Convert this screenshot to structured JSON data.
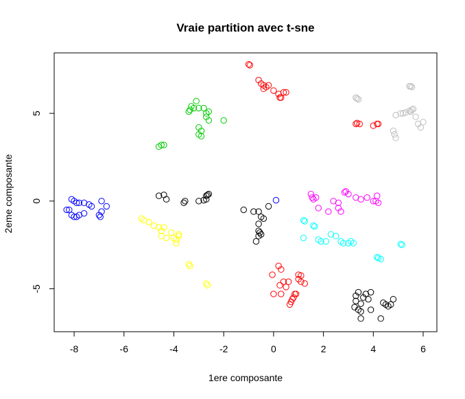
{
  "chart_data": {
    "type": "scatter",
    "title": "Vraie partition avec t-sne",
    "xlabel": "1ere composante",
    "ylabel": "2eme composante",
    "xlim": [
      -8.8,
      6.55
    ],
    "ylim": [
      -7.45,
      8.45
    ],
    "xticks": [
      -8,
      -6,
      -4,
      -2,
      0,
      2,
      4,
      6
    ],
    "yticks": [
      -5,
      0,
      5
    ],
    "grid": false,
    "legend": "none",
    "series": [
      {
        "color": "#0000ff",
        "points": [
          [
            -8.1,
            0.1
          ],
          [
            -8.0,
            0.0
          ],
          [
            -7.9,
            -0.1
          ],
          [
            -7.8,
            -0.1
          ],
          [
            -7.6,
            -0.1
          ],
          [
            -7.4,
            -0.2
          ],
          [
            -7.3,
            -0.3
          ],
          [
            -8.2,
            -0.5
          ],
          [
            -8.1,
            -0.8
          ],
          [
            -8.0,
            -0.9
          ],
          [
            -7.9,
            -0.9
          ],
          [
            -7.8,
            -0.8
          ],
          [
            -7.6,
            -0.7
          ],
          [
            -7.0,
            -0.8
          ],
          [
            -6.95,
            -0.9
          ],
          [
            -6.9,
            -0.6
          ],
          [
            -6.9,
            0.0
          ],
          [
            -6.7,
            -0.3
          ],
          [
            -8.3,
            -0.5
          ],
          [
            0.1,
            0.05
          ]
        ]
      },
      {
        "color": "#ffff00",
        "points": [
          [
            -5.3,
            -1.0
          ],
          [
            -5.2,
            -1.1
          ],
          [
            -5.0,
            -1.2
          ],
          [
            -4.8,
            -1.4
          ],
          [
            -4.6,
            -1.5
          ],
          [
            -4.5,
            -1.7
          ],
          [
            -4.4,
            -1.5
          ],
          [
            -4.5,
            -2.0
          ],
          [
            -4.3,
            -2.1
          ],
          [
            -4.1,
            -1.8
          ],
          [
            -4.0,
            -2.1
          ],
          [
            -3.9,
            -2.2
          ],
          [
            -3.9,
            -2.4
          ],
          [
            -3.8,
            -2.0
          ],
          [
            -3.8,
            -1.9
          ],
          [
            -3.4,
            -3.6
          ],
          [
            -3.35,
            -3.7
          ],
          [
            -2.7,
            -4.7
          ],
          [
            -2.65,
            -4.8
          ]
        ]
      },
      {
        "color": "#00cc00",
        "points": [
          [
            -3.1,
            5.7
          ],
          [
            -3.3,
            5.4
          ],
          [
            -3.2,
            5.3
          ],
          [
            -3.0,
            5.3
          ],
          [
            -2.8,
            5.3
          ],
          [
            -3.35,
            5.2
          ],
          [
            -3.4,
            5.1
          ],
          [
            -2.7,
            5.0
          ],
          [
            -2.6,
            5.1
          ],
          [
            -2.7,
            4.8
          ],
          [
            -2.6,
            4.6
          ],
          [
            -2.0,
            4.6
          ],
          [
            -3.0,
            4.2
          ],
          [
            -2.9,
            4.0
          ],
          [
            -3.0,
            3.8
          ],
          [
            -2.9,
            3.7
          ],
          [
            -4.5,
            3.2
          ],
          [
            -4.6,
            3.1
          ],
          [
            -4.4,
            3.2
          ]
        ]
      },
      {
        "color": "#ff0000",
        "points": [
          [
            -1.0,
            7.8
          ],
          [
            -0.95,
            7.75
          ],
          [
            -0.6,
            6.9
          ],
          [
            -0.5,
            6.7
          ],
          [
            -0.4,
            6.6
          ],
          [
            -0.3,
            6.5
          ],
          [
            -0.4,
            6.4
          ],
          [
            -0.2,
            6.6
          ],
          [
            0.0,
            6.3
          ],
          [
            0.2,
            6.1
          ],
          [
            0.4,
            6.2
          ],
          [
            0.5,
            6.2
          ],
          [
            0.25,
            5.9
          ],
          [
            0.3,
            5.9
          ],
          [
            3.3,
            4.4
          ],
          [
            3.35,
            4.45
          ],
          [
            3.45,
            4.4
          ],
          [
            4.0,
            4.3
          ],
          [
            4.15,
            4.4
          ],
          [
            4.2,
            4.4
          ],
          [
            -0.05,
            -4.2
          ],
          [
            0.2,
            -3.7
          ],
          [
            0.3,
            -3.9
          ],
          [
            0.0,
            -5.3
          ],
          [
            0.3,
            -5.3
          ],
          [
            0.25,
            -4.8
          ],
          [
            0.4,
            -4.6
          ],
          [
            0.6,
            -4.6
          ],
          [
            0.5,
            -4.9
          ],
          [
            1.0,
            -4.2
          ],
          [
            1.1,
            -4.25
          ],
          [
            1.0,
            -4.45
          ],
          [
            1.1,
            -4.6
          ],
          [
            1.25,
            -4.7
          ],
          [
            0.85,
            -5.3
          ],
          [
            0.9,
            -5.3
          ],
          [
            0.8,
            -5.5
          ],
          [
            0.75,
            -5.6
          ],
          [
            0.7,
            -5.75
          ],
          [
            0.65,
            -5.9
          ]
        ]
      },
      {
        "color": "#000000",
        "points": [
          [
            -4.6,
            0.3
          ],
          [
            -4.4,
            0.35
          ],
          [
            -4.3,
            0.1
          ],
          [
            -3.6,
            -0.1
          ],
          [
            -3.55,
            0.0
          ],
          [
            -3.0,
            0.0
          ],
          [
            -2.8,
            0.05
          ],
          [
            -2.7,
            0.1
          ],
          [
            -2.7,
            0.3
          ],
          [
            -2.65,
            0.35
          ],
          [
            -2.6,
            0.4
          ],
          [
            -1.2,
            -0.5
          ],
          [
            -0.8,
            -0.6
          ],
          [
            -0.6,
            -0.6
          ],
          [
            -0.5,
            -0.9
          ],
          [
            -0.6,
            -1.3
          ],
          [
            -0.6,
            -1.7
          ],
          [
            -0.55,
            -1.8
          ],
          [
            -0.5,
            -1.9
          ],
          [
            -0.6,
            -2.0
          ],
          [
            -0.7,
            -2.3
          ],
          [
            -0.2,
            -0.3
          ],
          [
            -0.4,
            -1.0
          ],
          [
            3.3,
            -5.4
          ],
          [
            3.3,
            -5.7
          ],
          [
            3.4,
            -5.2
          ],
          [
            3.5,
            -5.85
          ],
          [
            3.6,
            -5.5
          ],
          [
            3.7,
            -5.3
          ],
          [
            3.8,
            -5.6
          ],
          [
            3.9,
            -5.2
          ],
          [
            3.4,
            -6.2
          ],
          [
            3.5,
            -6.3
          ],
          [
            3.5,
            -6.7
          ],
          [
            3.9,
            -6.2
          ],
          [
            4.3,
            -6.7
          ],
          [
            4.5,
            -5.9
          ],
          [
            4.6,
            -6.0
          ],
          [
            4.7,
            -5.9
          ],
          [
            4.8,
            -5.6
          ],
          [
            3.25,
            -6.05
          ],
          [
            4.4,
            -5.8
          ]
        ]
      },
      {
        "color": "#ff00ff",
        "points": [
          [
            1.5,
            0.4
          ],
          [
            1.55,
            0.2
          ],
          [
            1.6,
            0.1
          ],
          [
            1.7,
            0.2
          ],
          [
            1.8,
            -0.4
          ],
          [
            2.4,
            0.0
          ],
          [
            2.6,
            -0.1
          ],
          [
            2.6,
            -0.4
          ],
          [
            2.7,
            -0.6
          ],
          [
            2.85,
            0.5
          ],
          [
            2.9,
            0.55
          ],
          [
            3.0,
            0.4
          ],
          [
            3.3,
            0.2
          ],
          [
            3.5,
            0.1
          ],
          [
            3.75,
            0.2
          ],
          [
            4.0,
            0.0
          ],
          [
            4.1,
            0.0
          ],
          [
            4.15,
            0.3
          ],
          [
            4.2,
            -0.1
          ],
          [
            2.2,
            -0.6
          ]
        ]
      },
      {
        "color": "#00ffff",
        "points": [
          [
            1.2,
            -1.1
          ],
          [
            1.25,
            -1.15
          ],
          [
            1.6,
            -1.4
          ],
          [
            1.65,
            -1.45
          ],
          [
            1.2,
            -2.1
          ],
          [
            1.8,
            -2.2
          ],
          [
            1.9,
            -2.3
          ],
          [
            2.1,
            -2.3
          ],
          [
            2.3,
            -1.9
          ],
          [
            2.5,
            -2.0
          ],
          [
            2.7,
            -2.3
          ],
          [
            2.8,
            -2.4
          ],
          [
            3.0,
            -2.4
          ],
          [
            3.1,
            -2.3
          ],
          [
            3.2,
            -2.4
          ],
          [
            4.15,
            -3.2
          ],
          [
            4.2,
            -3.25
          ],
          [
            4.3,
            -3.3
          ],
          [
            5.1,
            -2.45
          ],
          [
            5.15,
            -2.5
          ]
        ]
      },
      {
        "color": "#bebebe",
        "points": [
          [
            3.3,
            5.9
          ],
          [
            3.35,
            5.85
          ],
          [
            3.4,
            5.8
          ],
          [
            5.45,
            6.55
          ],
          [
            5.5,
            6.55
          ],
          [
            5.55,
            6.5
          ],
          [
            4.9,
            4.9
          ],
          [
            5.1,
            5.0
          ],
          [
            5.2,
            5.0
          ],
          [
            5.3,
            5.05
          ],
          [
            5.5,
            5.1
          ],
          [
            5.55,
            5.2
          ],
          [
            5.6,
            5.25
          ],
          [
            5.45,
            5.15
          ],
          [
            5.7,
            4.8
          ],
          [
            5.8,
            4.4
          ],
          [
            5.9,
            4.2
          ],
          [
            6.0,
            4.5
          ],
          [
            4.8,
            4.0
          ],
          [
            4.85,
            3.8
          ],
          [
            4.9,
            3.6
          ]
        ]
      }
    ]
  }
}
